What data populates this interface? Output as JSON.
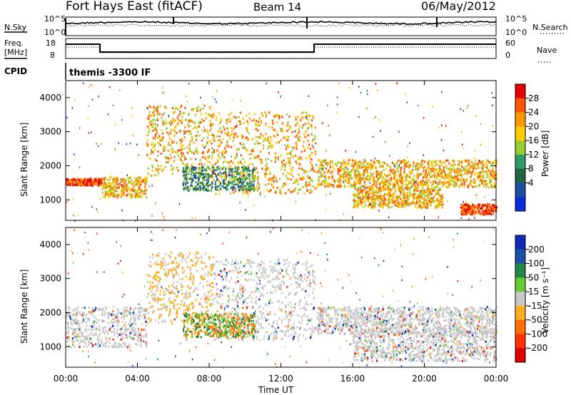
{
  "header": {
    "station": "Fort Hays East (fitACF)",
    "beam": "Beam 14",
    "date": "06/May/2012"
  },
  "labels": {
    "nsky": "N.Sky",
    "nsearch": "N.Search",
    "freq_line1": "Freq.",
    "freq_line2": "[MHz]",
    "nave": "Nave",
    "cpid": "CPID",
    "cpid_value": "themis -3300 IF",
    "slant_range": "Slant Range [km]",
    "time_axis": "Time UT",
    "power_label": "Power [dB]",
    "velocity_label": "Velocity [m s⁻¹]"
  },
  "noise_axis": {
    "ticks_left": [
      "10^5",
      "10^0"
    ],
    "ticks_right": [
      "10^5",
      "10^0"
    ]
  },
  "freq_axis": {
    "ticks_left": [
      "18",
      "8"
    ],
    "ticks_right": [
      "60",
      "0"
    ]
  },
  "chart_data": [
    {
      "type": "heatmap",
      "name": "power",
      "xlabel": "Time UT",
      "ylabel": "Slant Range [km]",
      "xlim": [
        0,
        24
      ],
      "ylim": [
        400,
        4500
      ],
      "x_ticks": [
        "00:00",
        "04:00",
        "08:00",
        "12:00",
        "16:00",
        "20:00",
        "00:00"
      ],
      "y_ticks": [
        1000,
        2000,
        3000,
        4000
      ],
      "colorbar": {
        "label": "Power [dB]",
        "ticks": [
          28,
          24,
          20,
          16,
          12,
          8,
          4
        ],
        "colors": [
          "#e60000",
          "#ff5500",
          "#ff9900",
          "#ffcc00",
          "#99cc33",
          "#339966",
          "#226644",
          "#1f4fa3",
          "#0a2fd6"
        ]
      },
      "bands": [
        {
          "t": [
            0.0,
            2.0
          ],
          "r": [
            1450,
            1650
          ],
          "level": "high"
        },
        {
          "t": [
            2.0,
            4.5
          ],
          "r": [
            1100,
            1700
          ],
          "level": "mid"
        },
        {
          "t": [
            4.5,
            8.2
          ],
          "r": [
            1700,
            3800
          ],
          "level": "mid"
        },
        {
          "t": [
            8.2,
            13.9
          ],
          "r": [
            1200,
            3600
          ],
          "level": "mid"
        },
        {
          "t": [
            6.5,
            10.5
          ],
          "r": [
            1300,
            2000
          ],
          "level": "low"
        },
        {
          "t": [
            14.0,
            24.0
          ],
          "r": [
            1400,
            2200
          ],
          "level": "mid"
        },
        {
          "t": [
            16.0,
            21.0
          ],
          "r": [
            800,
            1400
          ],
          "level": "mid"
        },
        {
          "t": [
            22.0,
            24.0
          ],
          "r": [
            600,
            900
          ],
          "level": "high"
        }
      ]
    },
    {
      "type": "heatmap",
      "name": "velocity",
      "xlabel": "Time UT",
      "ylabel": "Slant Range [km]",
      "xlim": [
        0,
        24
      ],
      "ylim": [
        400,
        4500
      ],
      "x_ticks": [
        "00:00",
        "04:00",
        "08:00",
        "12:00",
        "16:00",
        "20:00",
        "00:00"
      ],
      "y_ticks": [
        1000,
        2000,
        3000,
        4000
      ],
      "colorbar": {
        "label": "Velocity [m s⁻¹]",
        "ticks": [
          200,
          100,
          50,
          15,
          -15,
          -50,
          -100,
          -200
        ],
        "colors": [
          "#1028b8",
          "#1c4fa8",
          "#228844",
          "#66cc33",
          "#c8c8c8",
          "#ffb020",
          "#ff7000",
          "#ff3300",
          "#e00000"
        ]
      },
      "bands": [
        {
          "t": [
            0.0,
            4.5
          ],
          "r": [
            1000,
            2200
          ],
          "v": "ground"
        },
        {
          "t": [
            4.5,
            8.2
          ],
          "r": [
            1700,
            3800
          ],
          "v": "negative"
        },
        {
          "t": [
            8.2,
            13.9
          ],
          "r": [
            1200,
            3600
          ],
          "v": "ground"
        },
        {
          "t": [
            6.5,
            10.5
          ],
          "r": [
            1300,
            2000
          ],
          "v": "mixed"
        },
        {
          "t": [
            14.0,
            24.0
          ],
          "r": [
            1400,
            2200
          ],
          "v": "ground"
        },
        {
          "t": [
            16.0,
            24.0
          ],
          "r": [
            600,
            1500
          ],
          "v": "ground"
        }
      ]
    }
  ]
}
